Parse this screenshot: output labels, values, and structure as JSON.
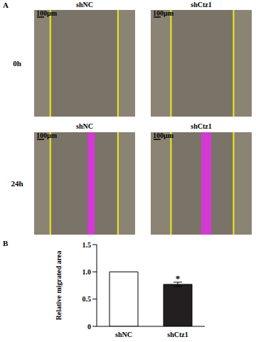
{
  "panel_labels": [
    "A",
    "B"
  ],
  "panel_a": {
    "columns": [
      "shNC",
      "shCtz1"
    ],
    "rows": [
      "0h",
      "24h"
    ],
    "scale_bar": "100μm"
  },
  "chart_data": {
    "type": "bar",
    "categories": [
      "shNC",
      "shCtz1"
    ],
    "values": [
      1.0,
      0.77
    ],
    "errors": [
      0,
      0.04
    ],
    "colors": [
      "#ffffff",
      "#231f20"
    ],
    "ylabel": "Relative migrated area",
    "ylim": [
      0,
      1.5
    ],
    "yticks": [
      0,
      0.5,
      {
        "value": 1,
        "label": "1.0"
      },
      1.5
    ],
    "annotations": [
      {
        "category": "shCtz1",
        "text": "*"
      }
    ]
  }
}
